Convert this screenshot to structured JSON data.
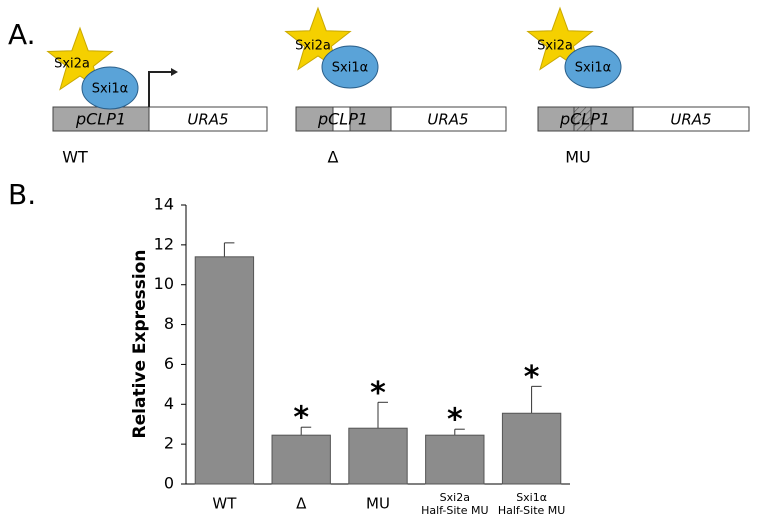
{
  "panel_a": {
    "label": "A.",
    "constructs": [
      {
        "star": "Sxi2a",
        "circle": "Sxi1α",
        "promoter": "pCLP1",
        "gene": "URA5",
        "label": "WT"
      },
      {
        "star": "Sxi2a",
        "circle": "Sxi1α",
        "promoter": "pCLP1",
        "gene": "URA5",
        "label": "Δ"
      },
      {
        "star": "Sxi2a",
        "circle": "Sxi1α",
        "promoter": "pCLP1",
        "gene": "URA5",
        "label": "MU"
      }
    ]
  },
  "panel_b": {
    "label": "B."
  },
  "chart_data": {
    "type": "bar",
    "y_label": "Relative Expression",
    "categories": [
      "WT",
      "Δ",
      "MU",
      "Sxi2a\nHalf-Site MU",
      "Sxi1α\nHalf-Site MU"
    ],
    "values": [
      11.4,
      2.45,
      2.8,
      2.45,
      3.55
    ],
    "errors": [
      0.7,
      0.4,
      1.3,
      0.3,
      1.35
    ],
    "significance": [
      null,
      "*",
      "*",
      "*",
      "*"
    ],
    "color": "#8c8c8c",
    "ylim": [
      0,
      14
    ],
    "yticks": [
      0,
      2,
      4,
      6,
      8,
      10,
      12,
      14
    ]
  }
}
